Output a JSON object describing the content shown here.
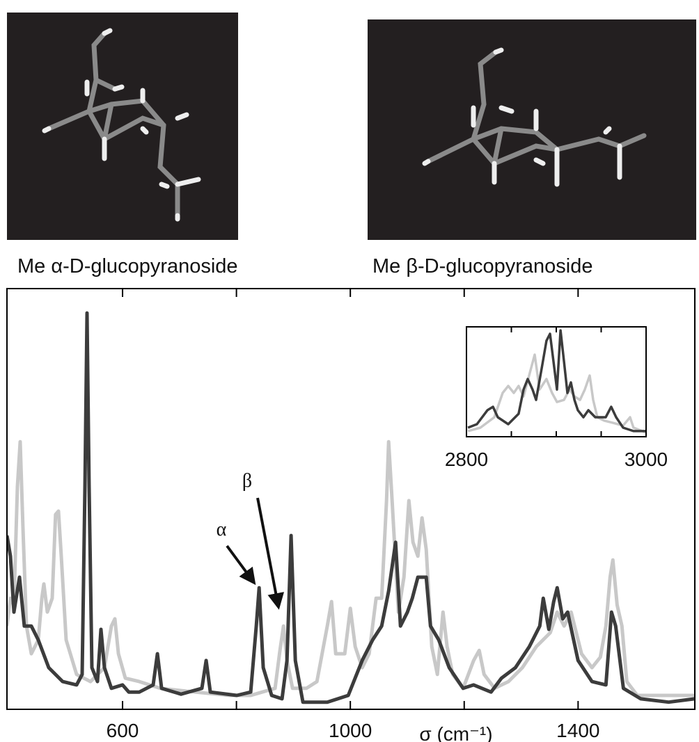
{
  "molecules": [
    {
      "label": "Me α-D-glucopyranoside"
    },
    {
      "label": "Me β-D-glucopyranoside"
    }
  ],
  "chart_data": [
    {
      "type": "line",
      "xlabel": "σ (cm⁻¹)",
      "xlim": [
        397,
        1605
      ],
      "ylim": [
        0,
        100
      ],
      "xticks": [
        600,
        1000,
        1400
      ],
      "xminorticks": [
        800,
        1200
      ],
      "series": [
        {
          "name": "α",
          "color": "#3c3c3c",
          "x": [
            397,
            403.1,
            409.2,
            419,
            427.5,
            439.8,
            452,
            470.3,
            494.8,
            519.3,
            529,
            534,
            537.6,
            541.3,
            546.2,
            556,
            562,
            568.2,
            580.4,
            600,
            611,
            629.4,
            653.8,
            661.2,
            668.5,
            702.7,
            739.4,
            746.8,
            754.1,
            800.6,
            825,
            834.9,
            839.8,
            847.1,
            861.8,
            880.1,
            888.7,
            896,
            903.4,
            916.8,
            959.6,
            996.3,
            1020.8,
            1039.1,
            1055,
            1067.3,
            1079.5,
            1088,
            1100.3,
            1108.9,
            1118.6,
            1133.3,
            1140.7,
            1155.3,
            1173.7,
            1198.1,
            1216.5,
            1247.1,
            1265.4,
            1289.9,
            1314.4,
            1332.7,
            1338.8,
            1348.6,
            1357.2,
            1363.3,
            1373.1,
            1381.6,
            1400,
            1424.4,
            1448.9,
            1458.7,
            1466,
            1479.5,
            1510,
            1559,
            1605
          ],
          "values": [
            41.3,
            36.4,
            23.1,
            31.4,
            19.8,
            19.8,
            16.5,
            9.9,
            6.6,
            5.8,
            8.3,
            52.9,
            94.2,
            52.9,
            9.9,
            6.6,
            19.0,
            9.9,
            5.0,
            5.8,
            4.1,
            4.1,
            5.8,
            13.2,
            5.0,
            3.6,
            5.0,
            11.6,
            4.1,
            3.3,
            4.1,
            19.8,
            28.9,
            9.9,
            3.3,
            2.5,
            11.6,
            41.3,
            11.6,
            1.7,
            1.7,
            3.3,
            11.6,
            16.5,
            19.8,
            28.1,
            39.7,
            19.8,
            23.1,
            26.4,
            31.4,
            31.4,
            19.8,
            16.5,
            9.9,
            5.0,
            5.8,
            4.1,
            7.4,
            9.9,
            14.9,
            19.8,
            26.4,
            19.0,
            25.6,
            28.9,
            21.5,
            23.1,
            11.6,
            6.6,
            5.8,
            23.1,
            19.8,
            5.0,
            2.5,
            1.7,
            2.5
          ]
        },
        {
          "name": "β",
          "color": "#c8c8c8",
          "x": [
            397,
            403.1,
            409.2,
            415.3,
            420.2,
            425.1,
            431.2,
            439.8,
            452,
            458.2,
            461.8,
            467.9,
            476.5,
            482.3,
            487.5,
            492.4,
            500.9,
            519.3,
            543.7,
            568.2,
            580.4,
            586.5,
            592.7,
            604.9,
            629.4,
            666.1,
            727.2,
            788.4,
            825,
            867.9,
            876.4,
            882.6,
            888.7,
            898.5,
            922.9,
            941.3,
            959.6,
            967,
            974.3,
            990.2,
            1000,
            1008.6,
            1020.8,
            1033,
            1045.2,
            1055,
            1063.6,
            1067.3,
            1073.4,
            1084.4,
            1094.2,
            1102.8,
            1110.1,
            1118.6,
            1126,
            1133.3,
            1143.1,
            1152.9,
            1162.7,
            1170,
            1179.8,
            1198.1,
            1216.5,
            1226.3,
            1234.9,
            1253.2,
            1277.7,
            1302.1,
            1326.6,
            1351.1,
            1363.3,
            1375.5,
            1387.7,
            1406.1,
            1424.4,
            1439.1,
            1448.9,
            1456.2,
            1461.1,
            1468.5,
            1477,
            1485.6,
            1504,
            1546.8,
            1605
          ],
          "values": [
            19.8,
            26.4,
            24.8,
            52.9,
            63.6,
            43.0,
            19.8,
            13.2,
            16.5,
            26.4,
            29.8,
            23.1,
            26.4,
            46.3,
            47.1,
            36.4,
            16.5,
            8.3,
            6.6,
            9.9,
            19.8,
            21.5,
            13.2,
            7.4,
            6.6,
            5.0,
            4.1,
            3.3,
            3.3,
            5.0,
            14.0,
            19.8,
            11.6,
            5.0,
            5.0,
            6.6,
            19.8,
            25.6,
            13.2,
            13.2,
            24.0,
            14.9,
            9.9,
            13.2,
            26.4,
            26.4,
            49.6,
            63.6,
            49.6,
            23.1,
            31.4,
            49.6,
            39.7,
            36.4,
            45.5,
            38.0,
            14.9,
            8.3,
            23.1,
            14.9,
            8.3,
            5.0,
            11.6,
            14.0,
            8.3,
            5.0,
            6.6,
            9.9,
            14.9,
            18.2,
            23.1,
            19.8,
            23.1,
            13.2,
            9.9,
            12.4,
            19.8,
            31.4,
            35.5,
            24.8,
            19.8,
            6.6,
            3.3,
            3.3,
            3.3
          ]
        }
      ]
    },
    {
      "type": "line",
      "xlim": [
        2800,
        3000
      ],
      "ylim": [
        0,
        100
      ],
      "xticks": [
        2800,
        3000
      ],
      "xminorticks": [
        2850,
        2900,
        2950
      ],
      "series": [
        {
          "color": "#3c3c3c",
          "x": [
            2801.6,
            2811.6,
            2823.3,
            2829.5,
            2834.9,
            2846.5,
            2858.1,
            2863.6,
            2868.2,
            2873.6,
            2877.5,
            2883.7,
            2889.1,
            2893,
            2896.9,
            2900.8,
            2904.7,
            2908.6,
            2912.4,
            2916.3,
            2920.2,
            2924,
            2930.2,
            2935.7,
            2943.4,
            2955,
            2961.2,
            2966.7,
            2974.4,
            2986,
            3000
          ],
          "values": [
            8.2,
            11.4,
            24.1,
            27.2,
            17.7,
            11.4,
            20.9,
            43.0,
            52.5,
            43.0,
            33.5,
            62.0,
            87.3,
            93.7,
            68.4,
            43.0,
            96.8,
            68.4,
            39.9,
            49.4,
            33.5,
            24.1,
            17.7,
            24.1,
            17.7,
            17.7,
            27.2,
            17.7,
            8.2,
            5.1,
            5.1
          ]
        },
        {
          "color": "#c8c8c8",
          "x": [
            2801.6,
            2815.5,
            2831,
            2840.3,
            2846.5,
            2852.7,
            2858.1,
            2863.6,
            2869.8,
            2876,
            2881.4,
            2889.1,
            2895.3,
            2900.8,
            2908.6,
            2914.7,
            2920.2,
            2926.4,
            2931.8,
            2937.2,
            2941.1,
            2945.7,
            2953.5,
            2962.8,
            2974.4,
            2982.2,
            2986,
            3000
          ],
          "values": [
            5.1,
            8.2,
            17.7,
            39.9,
            46.2,
            39.9,
            46.2,
            36.7,
            55.7,
            74.7,
            43.0,
            52.5,
            39.9,
            31.6,
            33.5,
            43.0,
            36.7,
            33.5,
            43.0,
            55.7,
            33.5,
            17.7,
            14.6,
            12.7,
            10.1,
            17.7,
            8.2,
            3.8
          ]
        }
      ]
    }
  ]
}
